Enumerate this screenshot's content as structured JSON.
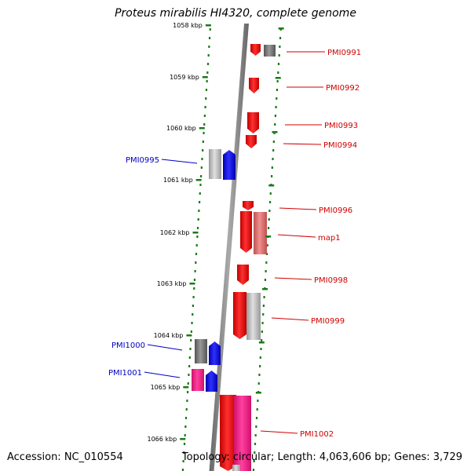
{
  "title": "Proteus mirabilis HI4320, complete genome",
  "accession": "Accession: NC_010554",
  "topology": "Topology: circular; Length: 4,063,606 bp; Genes: 3,729",
  "colors": {
    "ruler": "#1a7a1a",
    "backbone": "#888888",
    "forward_label": "#d10000",
    "reverse_label": "#0000c8",
    "cds_red": "#ff0000",
    "cds_blue": "#0000ff",
    "cds_magenta": "#ff1493",
    "cds_gray": "#777777",
    "cds_lightgray": "#bbbbbb",
    "cds_pink": "#e07070"
  },
  "ticks": [
    "1058 kbp",
    "1059 kbp",
    "1060 kbp",
    "1061 kbp",
    "1062 kbp",
    "1063 kbp",
    "1064 kbp",
    "1065 kbp",
    "1066 kbp"
  ],
  "genes": [
    {
      "label": "PMI0991",
      "strand": "forward"
    },
    {
      "label": "PMI0992",
      "strand": "forward"
    },
    {
      "label": "PMI0993",
      "strand": "forward"
    },
    {
      "label": "PMI0994",
      "strand": "forward"
    },
    {
      "label": "PMI0995",
      "strand": "reverse"
    },
    {
      "label": "PMI0996",
      "strand": "forward"
    },
    {
      "label": "map1",
      "strand": "forward"
    },
    {
      "label": "PMI0998",
      "strand": "forward"
    },
    {
      "label": "PMI0999",
      "strand": "forward"
    },
    {
      "label": "PMI1000",
      "strand": "reverse"
    },
    {
      "label": "PMI1001",
      "strand": "reverse"
    },
    {
      "label": "PMI1002",
      "strand": "forward"
    }
  ]
}
